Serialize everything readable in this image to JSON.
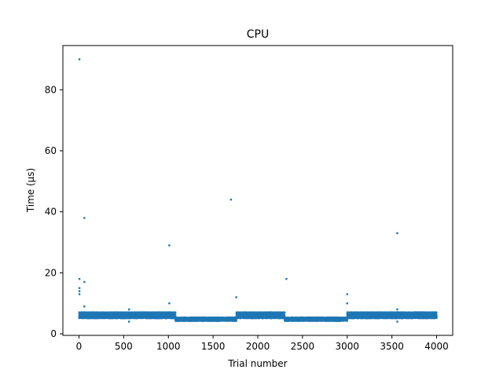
{
  "chart_data": {
    "type": "scatter",
    "title": "CPU",
    "xlabel": "Trial number",
    "ylabel": "Time (µs)",
    "xlim": [
      -180,
      4180
    ],
    "ylim": [
      -0.5,
      94.5
    ],
    "xticks": [
      0,
      500,
      1000,
      1500,
      2000,
      2500,
      3000,
      3500,
      4000
    ],
    "yticks": [
      0,
      20,
      40,
      60,
      80
    ],
    "grid": false,
    "legend": "none",
    "color": "#1f77b4",
    "segments": [
      {
        "x_start": 0,
        "x_end": 1080,
        "y_low": 5.2,
        "y_high": 7.0
      },
      {
        "x_start": 1080,
        "x_end": 1760,
        "y_low": 4.3,
        "y_high": 5.3
      },
      {
        "x_start": 1760,
        "x_end": 2300,
        "y_low": 5.2,
        "y_high": 7.0
      },
      {
        "x_start": 2300,
        "x_end": 3000,
        "y_low": 4.3,
        "y_high": 5.3
      },
      {
        "x_start": 3000,
        "x_end": 4000,
        "y_low": 5.2,
        "y_high": 7.0
      }
    ],
    "outliers": [
      {
        "x": 5,
        "y": 90
      },
      {
        "x": 5,
        "y": 18
      },
      {
        "x": 5,
        "y": 15
      },
      {
        "x": 5,
        "y": 14
      },
      {
        "x": 5,
        "y": 13
      },
      {
        "x": 60,
        "y": 38
      },
      {
        "x": 60,
        "y": 17
      },
      {
        "x": 60,
        "y": 9
      },
      {
        "x": 560,
        "y": 8
      },
      {
        "x": 560,
        "y": 4
      },
      {
        "x": 1010,
        "y": 29
      },
      {
        "x": 1010,
        "y": 10
      },
      {
        "x": 1700,
        "y": 44
      },
      {
        "x": 1760,
        "y": 12
      },
      {
        "x": 2320,
        "y": 18
      },
      {
        "x": 3000,
        "y": 13
      },
      {
        "x": 3000,
        "y": 10
      },
      {
        "x": 3560,
        "y": 33
      },
      {
        "x": 3560,
        "y": 8
      },
      {
        "x": 3560,
        "y": 4
      }
    ]
  }
}
